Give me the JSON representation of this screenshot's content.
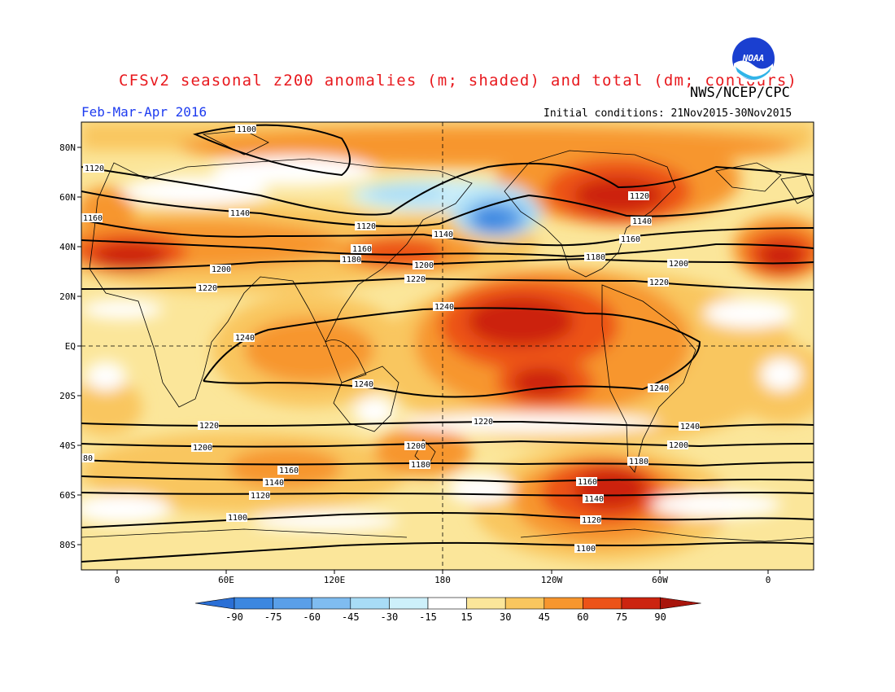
{
  "header": {
    "title": "CFSv2 seasonal z200 anomalies (m; shaded) and total (dm; contours)",
    "agency": "NWS/NCEP/CPC",
    "season": "Feb-Mar-Apr 2016",
    "initial_conditions": "Initial conditions: 21Nov2015-30Nov2015",
    "logo_text": "NOAA"
  },
  "axes": {
    "lat_labels": [
      "80N",
      "60N",
      "40N",
      "20N",
      "EQ",
      "20S",
      "40S",
      "60S",
      "80S"
    ],
    "lon_labels": [
      "0",
      "60E",
      "120E",
      "180",
      "120W",
      "60W",
      "0"
    ]
  },
  "colorbar": {
    "labels": [
      "-90",
      "-75",
      "-60",
      "-45",
      "-30",
      "-15",
      "15",
      "30",
      "45",
      "60",
      "75",
      "90"
    ],
    "colors": [
      "#2a6fd6",
      "#3c87e0",
      "#5a9fe8",
      "#7fbcf0",
      "#a8dcf6",
      "#cdf0fa",
      "#ffffff",
      "#fbe69a",
      "#f9c65e",
      "#f7962e",
      "#ec5318",
      "#cc2410",
      "#a8150c"
    ]
  },
  "contour_labels": {
    "1100": [
      "1100",
      "1100",
      "1100"
    ],
    "1120": [
      "1120",
      "1120",
      "1120",
      "1120",
      "1120"
    ],
    "1140": [
      "1140",
      "1140",
      "1140",
      "1140",
      "1140"
    ],
    "1160": [
      "1160",
      "1160",
      "1160",
      "1160",
      "1160"
    ],
    "1180": [
      "1180",
      "1180",
      "1180",
      "1180"
    ],
    "1200": [
      "1200",
      "1200",
      "1200",
      "1200",
      "1200"
    ],
    "1220": [
      "1220",
      "1220",
      "1220",
      "1220",
      "1220"
    ],
    "1240": [
      "1240",
      "1240",
      "1240",
      "1240",
      "1240"
    ],
    "edge": "80"
  }
}
